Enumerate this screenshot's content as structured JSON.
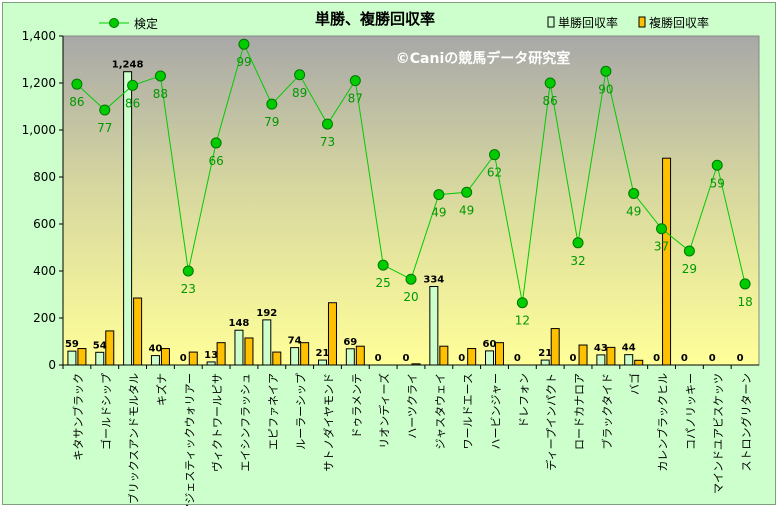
{
  "chart_data": {
    "type": "bar",
    "title": "単勝、複勝回収率",
    "watermark": "©Caniの競馬データ研究室",
    "ylim": [
      0,
      1400
    ],
    "yticks": [
      "0",
      "200",
      "400",
      "600",
      "800",
      "1,000",
      "1,200",
      "1,400"
    ],
    "ytick_values": [
      0,
      200,
      400,
      600,
      800,
      1000,
      1200,
      1400
    ],
    "grid": false,
    "legend_placement": "top",
    "categories": [
      "キタサンブラック",
      "ゴールドシップ",
      "ブリックスアンドモルタル",
      "キズナ",
      "マジェスティックウォリアー",
      "ヴィクトワールピサ",
      "エイシンフラッシュ",
      "エピファネイア",
      "ルーラーシップ",
      "サトノダイヤモンド",
      "ドゥラメンテ",
      "リオンディーズ",
      "ハーツクライ",
      "ジャスタウェイ",
      "ワールドエース",
      "ハービンジャー",
      "ドレフォン",
      "ディープインパクト",
      "ロードカナロア",
      "ブラックタイド",
      "バゴ",
      "カレンブラックヒル",
      "コパノリッキー",
      "マインドユアビスケッツ",
      "ストロングリターン"
    ],
    "series": [
      {
        "name": "単勝回収率",
        "kind": "bar",
        "color": "#ccffcc",
        "values": [
          59,
          54,
          1248,
          40,
          0,
          13,
          148,
          192,
          74,
          21,
          69,
          0,
          0,
          334,
          0,
          60,
          0,
          21,
          0,
          43,
          44,
          0,
          0,
          0,
          0
        ],
        "labels": [
          "59",
          "54",
          "1,248",
          "40",
          "0",
          "13",
          "148",
          "192",
          "74",
          "21",
          "69",
          "0",
          "0",
          "334",
          "0",
          "60",
          "0",
          "21",
          "0",
          "43",
          "44",
          "0",
          "0",
          "0",
          "0"
        ]
      },
      {
        "name": "複勝回収率",
        "kind": "bar",
        "color": "#ffc000",
        "values": [
          70,
          145,
          285,
          70,
          55,
          95,
          115,
          55,
          95,
          265,
          80,
          0,
          5,
          80,
          70,
          95,
          0,
          155,
          85,
          75,
          20,
          880,
          0,
          0,
          0
        ]
      },
      {
        "name": "検定",
        "kind": "line",
        "color": "#00cc00",
        "values": [
          1195,
          1085,
          1190,
          1230,
          400,
          945,
          1365,
          1110,
          1235,
          1025,
          1210,
          425,
          365,
          725,
          735,
          895,
          265,
          1200,
          520,
          1250,
          730,
          580,
          485,
          850,
          345
        ],
        "labels": [
          "86",
          "77",
          "86",
          "88",
          "23",
          "66",
          "99",
          "79",
          "89",
          "73",
          "87",
          "25",
          "20",
          "49",
          "49",
          "62",
          "12",
          "86",
          "32",
          "90",
          "49",
          "37",
          "29",
          "59",
          "18"
        ]
      }
    ]
  }
}
